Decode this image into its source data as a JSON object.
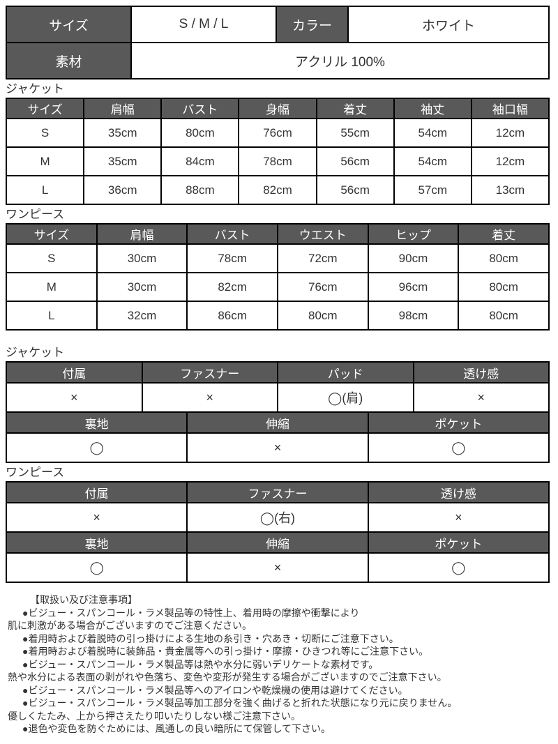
{
  "colors": {
    "header_bg": "#595959",
    "header_text": "#ffffff",
    "border": "#000000",
    "body_text": "#333333",
    "page_bg": "#ffffff"
  },
  "spec_table": {
    "size_label": "サイズ",
    "size_value": "S / M / L",
    "color_label": "カラー",
    "color_value": "ホワイト",
    "material_label": "素材",
    "material_value": "アクリル 100%"
  },
  "jacket_size": {
    "section_label": "ジャケット",
    "headers": [
      "サイズ",
      "肩幅",
      "バスト",
      "身幅",
      "着丈",
      "袖丈",
      "袖口幅"
    ],
    "rows": [
      [
        "S",
        "35cm",
        "80cm",
        "76cm",
        "55cm",
        "54cm",
        "12cm"
      ],
      [
        "M",
        "35cm",
        "84cm",
        "78cm",
        "56cm",
        "54cm",
        "12cm"
      ],
      [
        "L",
        "36cm",
        "88cm",
        "82cm",
        "56cm",
        "57cm",
        "13cm"
      ]
    ]
  },
  "onepiece_size": {
    "section_label": "ワンピース",
    "headers": [
      "サイズ",
      "肩幅",
      "バスト",
      "ウエスト",
      "ヒップ",
      "着丈"
    ],
    "rows": [
      [
        "S",
        "30cm",
        "78cm",
        "72cm",
        "90cm",
        "80cm"
      ],
      [
        "M",
        "30cm",
        "82cm",
        "76cm",
        "96cm",
        "80cm"
      ],
      [
        "L",
        "32cm",
        "86cm",
        "80cm",
        "98cm",
        "80cm"
      ]
    ]
  },
  "jacket_features": {
    "section_label": "ジャケット",
    "row1_headers": [
      "付属",
      "ファスナー",
      "パッド",
      "透け感"
    ],
    "row1_values": [
      "×",
      "×",
      "◯(肩)",
      "×"
    ],
    "row2_headers": [
      "裏地",
      "伸縮",
      "ポケット"
    ],
    "row2_values": [
      "◯",
      "×",
      "◯"
    ]
  },
  "onepiece_features": {
    "section_label": "ワンピース",
    "row1_headers": [
      "付属",
      "ファスナー",
      "透け感"
    ],
    "row1_values": [
      "×",
      "◯(右)",
      "×"
    ],
    "row2_headers": [
      "裏地",
      "伸縮",
      "ポケット"
    ],
    "row2_values": [
      "◯",
      "×",
      "◯"
    ]
  },
  "notes": {
    "title": "【取扱い及び注意事項】",
    "lines": [
      "●ビジュー・スパンコール・ラメ製品等の特性上、着用時の摩擦や衝撃により",
      "肌に刺激がある場合がございますのでご注意ください。",
      "●着用時および着脱時の引っ掛けによる生地の糸引き・穴あき・切断にご注意下さい。",
      "●着用時および着脱時に装飾品・貴金属等への引っ掛け・摩擦・ひきつれ等にご注意下さい。",
      "●ビジュー・スパンコール・ラメ製品等は熱や水分に弱いデリケートな素材です。",
      "熱や水分による表面の剥がれや色落ち、変色や変形が発生する場合がございますのでご注意下さい。",
      "●ビジュー・スパンコール・ラメ製品等へのアイロンや乾燥機の使用は避けてください。",
      "●ビジュー・スパンコール・ラメ製品等加工部分を強く曲げると折れた状態になり元に戻りません。",
      "優しくたたみ、上から押さえたり叩いたりしない様ご注意下さい。",
      "●退色や変色を防ぐためには、風通しの良い暗所にて保管して下さい。"
    ]
  }
}
